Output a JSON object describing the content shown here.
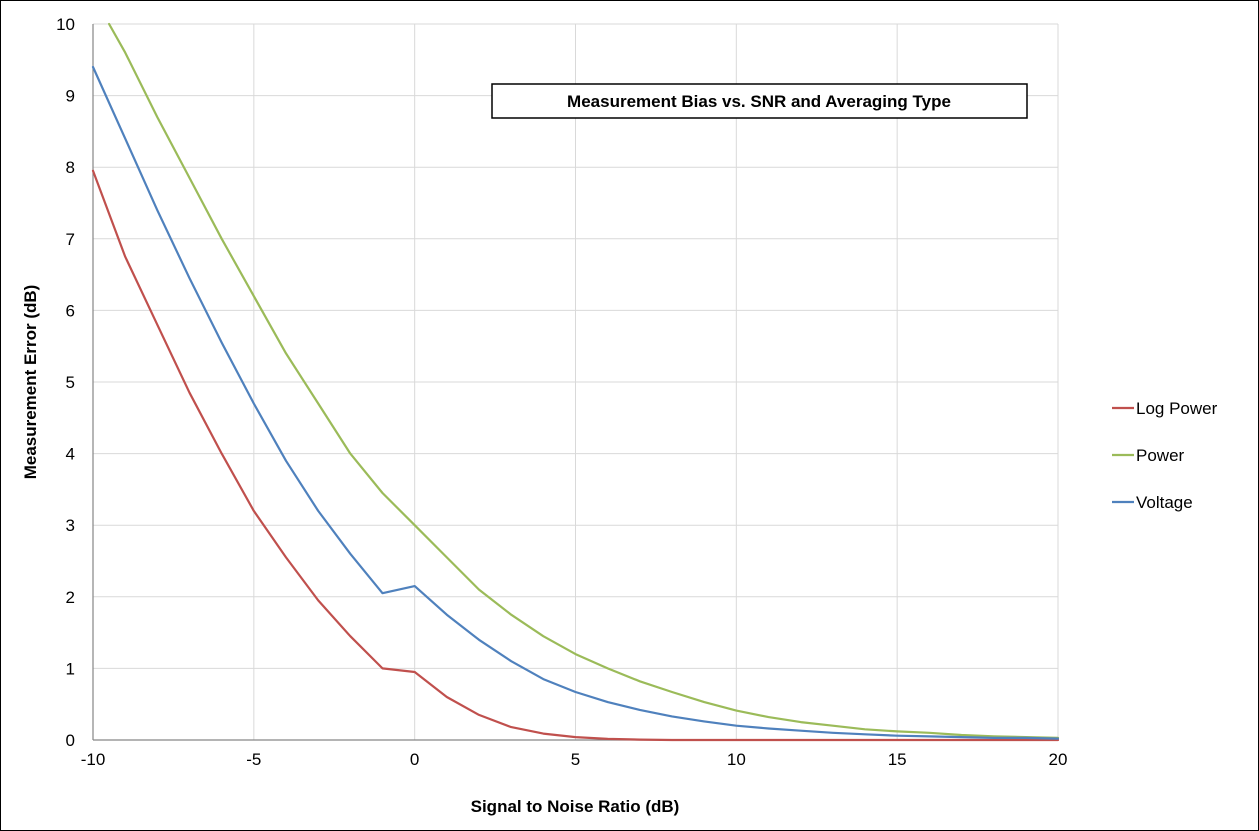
{
  "chart_data": {
    "type": "line",
    "title": "Measurement Bias vs. SNR and Averaging Type",
    "xlabel": "Signal to Noise Ratio (dB)",
    "ylabel": "Measurement Error (dB)",
    "xlim": [
      -10,
      20
    ],
    "ylim": [
      0,
      10
    ],
    "xticks": [
      "-10",
      "-5",
      "0",
      "5",
      "10",
      "15",
      "20"
    ],
    "yticks": [
      "0",
      "1",
      "2",
      "3",
      "4",
      "5",
      "6",
      "7",
      "8",
      "9",
      "10"
    ],
    "grid": true,
    "legend_position": "right",
    "series": [
      {
        "name": "Log Power",
        "color": "#c0504d",
        "x": [
          -10,
          -9,
          -8,
          -7,
          -6,
          -5,
          -4,
          -3,
          -2,
          -1,
          0,
          1,
          2,
          3,
          4,
          5,
          6,
          7,
          8,
          10,
          12,
          14,
          16,
          18,
          20
        ],
        "y": [
          7.95,
          6.75,
          5.8,
          4.85,
          4.0,
          3.2,
          2.55,
          1.95,
          1.45,
          1.0,
          0.95,
          0.6,
          0.35,
          0.18,
          0.09,
          0.04,
          0.015,
          0.005,
          0.0,
          0.0,
          0.0,
          0.0,
          0.0,
          0.0,
          0.0
        ]
      },
      {
        "name": "Power",
        "color": "#9bbb59",
        "x": [
          -9.5,
          -9,
          -8,
          -7,
          -6,
          -5,
          -4,
          -3,
          -2,
          -1,
          0,
          1,
          2,
          3,
          4,
          5,
          6,
          7,
          8,
          9,
          10,
          11,
          12,
          13,
          14,
          15,
          16,
          17,
          18,
          19,
          20
        ],
        "y": [
          10.0,
          9.6,
          8.7,
          7.85,
          7.0,
          6.2,
          5.4,
          4.7,
          4.0,
          3.45,
          3.0,
          2.55,
          2.1,
          1.75,
          1.45,
          1.2,
          1.0,
          0.82,
          0.67,
          0.53,
          0.41,
          0.32,
          0.25,
          0.2,
          0.15,
          0.12,
          0.1,
          0.07,
          0.05,
          0.04,
          0.03
        ]
      },
      {
        "name": "Voltage",
        "color": "#4f81bd",
        "x": [
          -10,
          -9,
          -8,
          -7,
          -6,
          -5,
          -4,
          -3,
          -2,
          -1,
          0,
          1,
          2,
          3,
          4,
          5,
          6,
          7,
          8,
          9,
          10,
          11,
          12,
          13,
          14,
          15,
          16,
          17,
          18,
          19,
          20
        ],
        "y": [
          9.4,
          8.4,
          7.4,
          6.45,
          5.55,
          4.7,
          3.9,
          3.2,
          2.6,
          2.05,
          2.15,
          1.75,
          1.4,
          1.1,
          0.85,
          0.67,
          0.53,
          0.42,
          0.33,
          0.26,
          0.2,
          0.16,
          0.13,
          0.1,
          0.08,
          0.06,
          0.05,
          0.04,
          0.03,
          0.03,
          0.02
        ]
      }
    ]
  }
}
